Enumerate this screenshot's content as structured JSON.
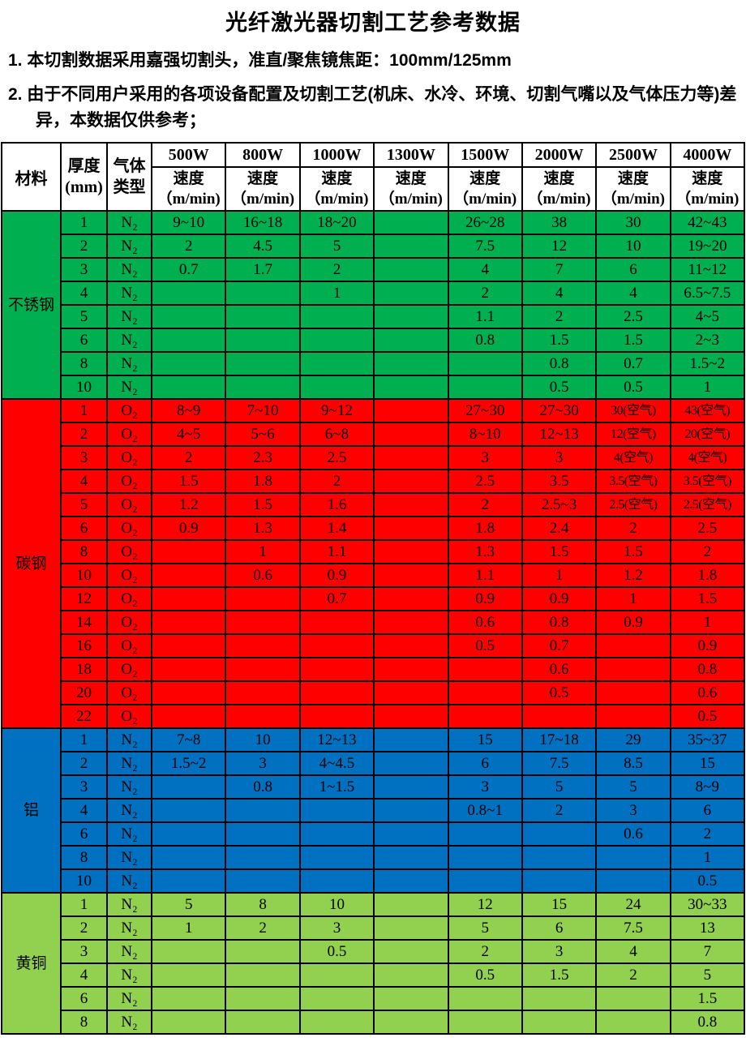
{
  "title": "光纤激光器切割工艺参考数据",
  "notes": [
    "1. 本切割数据采用嘉强切割头，准直/聚焦镜焦距：100mm/125mm",
    "2. 由于不同用户采用的各项设备配置及切割工艺(机床、水冷、环境、切割气嘴以及气体压力等)差异，本数据仅供参考；"
  ],
  "table": {
    "header": {
      "material": "材料",
      "thickness": "厚度\n(mm)",
      "gas": "气体\n类型",
      "powers": [
        "500W",
        "800W",
        "1000W",
        "1300W",
        "1500W",
        "2000W",
        "2500W",
        "4000W"
      ],
      "speed_label": "速度\n（m/min)"
    },
    "sections": [
      {
        "material": "不锈钢",
        "color": "#00B050",
        "rows": [
          {
            "thickness": "1",
            "gas": "N₂",
            "speeds": [
              "9~10",
              "16~18",
              "18~20",
              "",
              "26~28",
              "38",
              "30",
              "42~43"
            ]
          },
          {
            "thickness": "2",
            "gas": "N₂",
            "speeds": [
              "2",
              "4.5",
              "5",
              "",
              "7.5",
              "12",
              "10",
              "19~20"
            ]
          },
          {
            "thickness": "3",
            "gas": "N₂",
            "speeds": [
              "0.7",
              "1.7",
              "2",
              "",
              "4",
              "7",
              "6",
              "11~12"
            ]
          },
          {
            "thickness": "4",
            "gas": "N₂",
            "speeds": [
              "",
              "",
              "1",
              "",
              "2",
              "4",
              "4",
              "6.5~7.5"
            ]
          },
          {
            "thickness": "5",
            "gas": "N₂",
            "speeds": [
              "",
              "",
              "",
              "",
              "1.1",
              "2",
              "2.5",
              "4~5"
            ]
          },
          {
            "thickness": "6",
            "gas": "N₂",
            "speeds": [
              "",
              "",
              "",
              "",
              "0.8",
              "1.5",
              "1.5",
              "2~3"
            ]
          },
          {
            "thickness": "8",
            "gas": "N₂",
            "speeds": [
              "",
              "",
              "",
              "",
              "",
              "0.8",
              "0.7",
              "1.5~2"
            ]
          },
          {
            "thickness": "10",
            "gas": "N₂",
            "speeds": [
              "",
              "",
              "",
              "",
              "",
              "0.5",
              "0.5",
              "1"
            ]
          }
        ]
      },
      {
        "material": "碳钢",
        "color": "#FF0000",
        "rows": [
          {
            "thickness": "1",
            "gas": "O₂",
            "speeds": [
              "8~9",
              "7~10",
              "9~12",
              "",
              "27~30",
              "27~30",
              "30(空气)",
              "43(空气)"
            ]
          },
          {
            "thickness": "2",
            "gas": "O₂",
            "speeds": [
              "4~5",
              "5~6",
              "6~8",
              "",
              "8~10",
              "12~13",
              "12(空气)",
              "20(空气)"
            ]
          },
          {
            "thickness": "3",
            "gas": "O₂",
            "speeds": [
              "2",
              "2.3",
              "2.5",
              "",
              "3",
              "3",
              "4(空气)",
              "4(空气)"
            ]
          },
          {
            "thickness": "4",
            "gas": "O₂",
            "speeds": [
              "1.5",
              "1.8",
              "2",
              "",
              "2.5",
              "3.5",
              "3.5(空气)",
              "3.5(空气)"
            ]
          },
          {
            "thickness": "5",
            "gas": "O₂",
            "speeds": [
              "1.2",
              "1.5",
              "1.6",
              "",
              "2",
              "2.5~3",
              "2.5(空气)",
              "2.5(空气)"
            ]
          },
          {
            "thickness": "6",
            "gas": "O₂",
            "speeds": [
              "0.9",
              "1.3",
              "1.4",
              "",
              "1.8",
              "2.4",
              "2",
              "2.5"
            ]
          },
          {
            "thickness": "8",
            "gas": "O₂",
            "speeds": [
              "",
              "1",
              "1.1",
              "",
              "1.3",
              "1.5",
              "1.5",
              "2"
            ]
          },
          {
            "thickness": "10",
            "gas": "O₂",
            "speeds": [
              "",
              "0.6",
              "0.9",
              "",
              "1.1",
              "1",
              "1.2",
              "1.8"
            ]
          },
          {
            "thickness": "12",
            "gas": "O₂",
            "speeds": [
              "",
              "",
              "0.7",
              "",
              "0.9",
              "0.9",
              "1",
              "1.5"
            ]
          },
          {
            "thickness": "14",
            "gas": "O₂",
            "speeds": [
              "",
              "",
              "",
              "",
              "0.6",
              "0.8",
              "0.9",
              "1"
            ]
          },
          {
            "thickness": "16",
            "gas": "O₂",
            "speeds": [
              "",
              "",
              "",
              "",
              "0.5",
              "0.7",
              "",
              "0.9"
            ]
          },
          {
            "thickness": "18",
            "gas": "O₂",
            "speeds": [
              "",
              "",
              "",
              "",
              "",
              "0.6",
              "",
              "0.8"
            ]
          },
          {
            "thickness": "20",
            "gas": "O₂",
            "speeds": [
              "",
              "",
              "",
              "",
              "",
              "0.5",
              "",
              "0.6"
            ]
          },
          {
            "thickness": "22",
            "gas": "O₂",
            "speeds": [
              "",
              "",
              "",
              "",
              "",
              "",
              "",
              "0.5"
            ]
          }
        ]
      },
      {
        "material": "铝",
        "color": "#0070C0",
        "rows": [
          {
            "thickness": "1",
            "gas": "N₂",
            "speeds": [
              "7~8",
              "10",
              "12~13",
              "",
              "15",
              "17~18",
              "29",
              "35~37"
            ]
          },
          {
            "thickness": "2",
            "gas": "N₂",
            "speeds": [
              "1.5~2",
              "3",
              "4~4.5",
              "",
              "6",
              "7.5",
              "8.5",
              "15"
            ]
          },
          {
            "thickness": "3",
            "gas": "N₂",
            "speeds": [
              "",
              "0.8",
              "1~1.5",
              "",
              "3",
              "5",
              "5",
              "8~9"
            ]
          },
          {
            "thickness": "4",
            "gas": "N₂",
            "speeds": [
              "",
              "",
              "",
              "",
              "0.8~1",
              "2",
              "3",
              "6"
            ]
          },
          {
            "thickness": "6",
            "gas": "N₂",
            "speeds": [
              "",
              "",
              "",
              "",
              "",
              "",
              "0.6",
              "2"
            ]
          },
          {
            "thickness": "8",
            "gas": "N₂",
            "speeds": [
              "",
              "",
              "",
              "",
              "",
              "",
              "",
              "1"
            ]
          },
          {
            "thickness": "10",
            "gas": "N₂",
            "speeds": [
              "",
              "",
              "",
              "",
              "",
              "",
              "",
              "0.5"
            ]
          }
        ]
      },
      {
        "material": "黄铜",
        "color": "#92D050",
        "rows": [
          {
            "thickness": "1",
            "gas": "N₂",
            "speeds": [
              "5",
              "8",
              "10",
              "",
              "12",
              "15",
              "24",
              "30~33"
            ]
          },
          {
            "thickness": "2",
            "gas": "N₂",
            "speeds": [
              "1",
              "2",
              "3",
              "",
              "5",
              "6",
              "7.5",
              "13"
            ]
          },
          {
            "thickness": "3",
            "gas": "N₂",
            "speeds": [
              "",
              "",
              "0.5",
              "",
              "2",
              "3",
              "4",
              "7"
            ]
          },
          {
            "thickness": "4",
            "gas": "N₂",
            "speeds": [
              "",
              "",
              "",
              "",
              "0.5",
              "1.5",
              "2",
              "5"
            ]
          },
          {
            "thickness": "6",
            "gas": "N₂",
            "speeds": [
              "",
              "",
              "",
              "",
              "",
              "",
              "",
              "1.5"
            ]
          },
          {
            "thickness": "8",
            "gas": "N₂",
            "speeds": [
              "",
              "",
              "",
              "",
              "",
              "",
              "",
              "0.8"
            ]
          }
        ]
      }
    ]
  }
}
